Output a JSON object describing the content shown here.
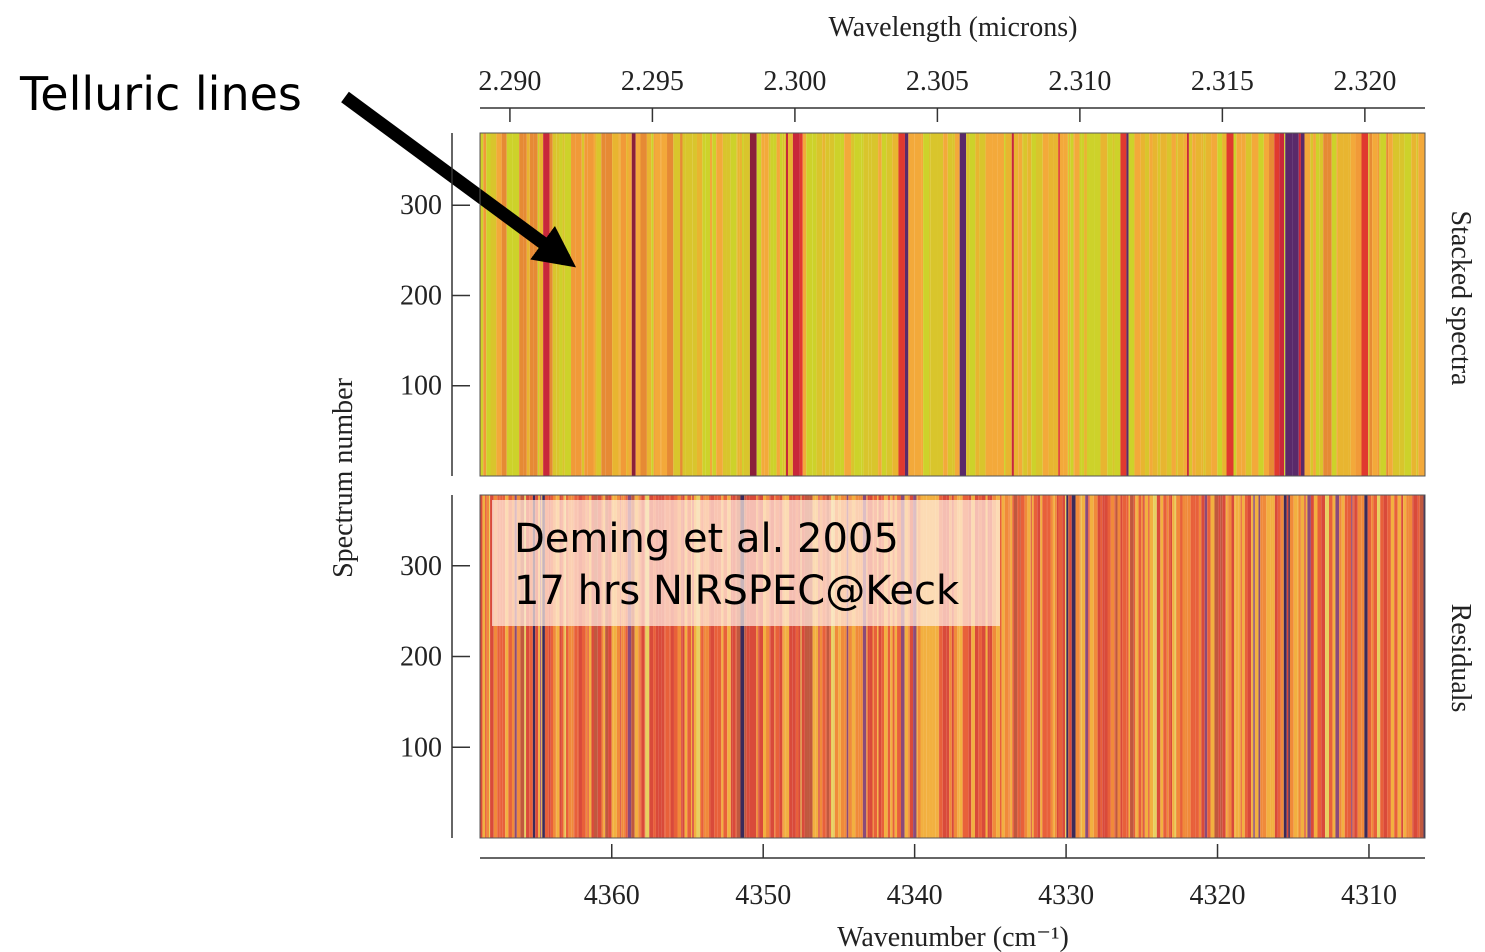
{
  "annotations": [
    "Telluric lines",
    "Deming et al. 2005",
    "17 hrs NIRSPEC@Keck"
  ],
  "chart_data": {
    "type": "heatmap",
    "ylabel": "Spectrum number",
    "top_axis": {
      "label": "Wavelength (microns)",
      "xlim": [
        2.28895,
        2.32211
      ],
      "xticks": [
        {
          "value": 2.29,
          "label": "2.290"
        },
        {
          "value": 2.295,
          "label": "2.295"
        },
        {
          "value": 2.3,
          "label": "2.300"
        },
        {
          "value": 2.305,
          "label": "2.305"
        },
        {
          "value": 2.31,
          "label": "2.310"
        },
        {
          "value": 2.315,
          "label": "2.315"
        },
        {
          "value": 2.32,
          "label": "2.320"
        }
      ]
    },
    "bottom_axis": {
      "label": "Wavenumber (cm⁻¹)",
      "xlim": [
        4368.7,
        4306.3
      ],
      "xticks": [
        4360,
        4350,
        4340,
        4330,
        4320,
        4310
      ]
    },
    "panels": [
      {
        "label": "Stacked spectra",
        "ylim": [
          0,
          380
        ],
        "yticks": [
          100,
          200,
          300
        ]
      },
      {
        "label": "Residuals",
        "ylim": [
          0,
          378
        ],
        "yticks": [
          100,
          200,
          300
        ]
      }
    ]
  }
}
